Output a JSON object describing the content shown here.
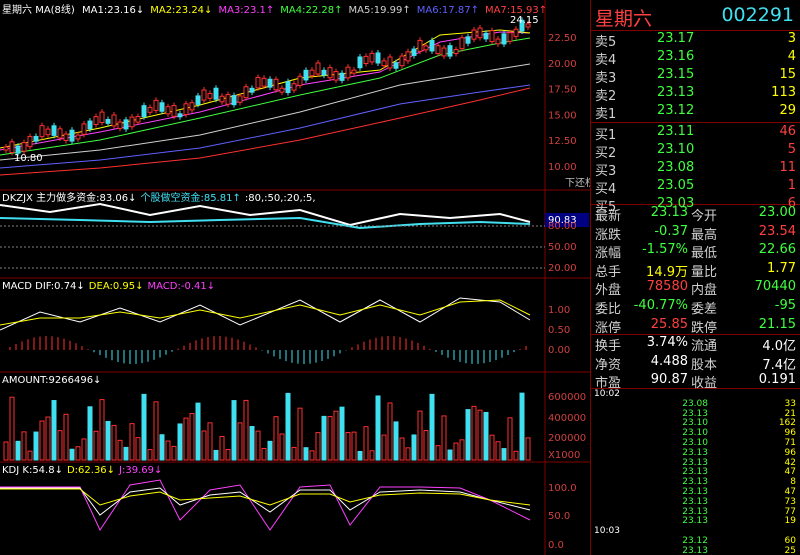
{
  "main_chart": {
    "title": "星期六",
    "indicator": "MA(8线)",
    "legend": [
      {
        "label": "MA1:23.16↓",
        "color": "#ffffff"
      },
      {
        "label": "MA2:23.24↓",
        "color": "#ffff00"
      },
      {
        "label": "MA3:23.1↑",
        "color": "#ff40ff"
      },
      {
        "label": "MA4:22.28↑",
        "color": "#40ff40"
      },
      {
        "label": "MA5:19.99↑",
        "color": "#d0d0d0"
      },
      {
        "label": "MA6:17.87↑",
        "color": "#6060ff"
      },
      {
        "label": "MA7:15.93↑",
        "color": "#ff4040"
      }
    ],
    "axis": [
      "22.50",
      "20.00",
      "17.50",
      "15.00",
      "12.50",
      "10.00"
    ],
    "high": "24.15",
    "low": "10.80",
    "adjust": "下还权"
  },
  "panels": [
    {
      "legend": [
        {
          "label": "DKZJX 主力做多资金:83.06↓",
          "color": "#ffffff"
        },
        {
          "label": "个股做空资金:85.81↑",
          "color": "#40e0f0"
        },
        {
          "label": ":80,:50,:20,:5,",
          "color": "#ffffff"
        }
      ],
      "axis": [
        "90.83",
        "80.00",
        "50.00",
        "20.00"
      ]
    },
    {
      "legend": [
        {
          "label": "MACD DIF:0.74↓",
          "color": "#ffffff"
        },
        {
          "label": "DEA:0.95↓",
          "color": "#ffff00"
        },
        {
          "label": "MACD:-0.41↓",
          "color": "#ff40ff"
        }
      ],
      "axis": [
        "1.00",
        "0.50",
        "0.00"
      ]
    },
    {
      "legend": [
        {
          "label": "AMOUNT:9266496↓",
          "color": "#ffffff"
        }
      ],
      "axis": [
        "600000",
        "400000",
        "200000",
        "X1000"
      ]
    },
    {
      "legend": [
        {
          "label": "KDJ K:54.8↓",
          "color": "#ffffff"
        },
        {
          "label": "D:62.36↓",
          "color": "#ffff00"
        },
        {
          "label": "J:39.69↓",
          "color": "#ff40ff"
        }
      ],
      "axis": [
        "100.0",
        "50.0",
        "0.0"
      ]
    }
  ],
  "header": {
    "name": "星期六",
    "code": "002291"
  },
  "order_book": [
    {
      "label": "卖5",
      "price": "23.17",
      "volume": "3"
    },
    {
      "label": "卖4",
      "price": "23.16",
      "volume": "4"
    },
    {
      "label": "卖3",
      "price": "23.15",
      "volume": "15"
    },
    {
      "label": "卖2",
      "price": "23.13",
      "volume": "113"
    },
    {
      "label": "卖1",
      "price": "23.12",
      "volume": "29"
    },
    {
      "label": "买1",
      "price": "23.11",
      "volume": "46"
    },
    {
      "label": "买2",
      "price": "23.10",
      "volume": "5"
    },
    {
      "label": "买3",
      "price": "23.08",
      "volume": "11"
    },
    {
      "label": "买4",
      "price": "23.05",
      "volume": "1"
    },
    {
      "label": "买5",
      "price": "23.03",
      "volume": "6"
    }
  ],
  "quote": [
    [
      "最新",
      "23.13",
      "今开",
      "23.00"
    ],
    [
      "涨跌",
      "-0.37",
      "最高",
      "23.54"
    ],
    [
      "涨幅",
      "-1.57%",
      "最低",
      "22.66"
    ],
    [
      "总手",
      "14.9万",
      "量比",
      "1.77"
    ],
    [
      "外盘",
      "78580",
      "内盘",
      "70440"
    ],
    [
      "委比",
      "-40.77%",
      "委差",
      "-95"
    ],
    [
      "涨停",
      "25.85",
      "跌停",
      "21.15"
    ]
  ],
  "finance": [
    [
      "换手",
      "3.74%",
      "流通",
      "4.0亿"
    ],
    [
      "净资",
      "4.488",
      "股本",
      "7.4亿"
    ],
    [
      "市盈",
      "90.87",
      "收益",
      "0.191"
    ]
  ],
  "ticks": [
    {
      "time": "10:02"
    },
    {
      "price": "23.08",
      "volume": "33"
    },
    {
      "price": "23.13",
      "volume": "21"
    },
    {
      "price": "23.10",
      "volume": "162"
    },
    {
      "price": "23.10",
      "volume": "96"
    },
    {
      "price": "23.10",
      "volume": "71"
    },
    {
      "price": "23.13",
      "volume": "96"
    },
    {
      "price": "23.13",
      "volume": "42"
    },
    {
      "price": "23.13",
      "volume": "47"
    },
    {
      "price": "23.13",
      "volume": "8"
    },
    {
      "price": "23.13",
      "volume": "47"
    },
    {
      "price": "23.13",
      "volume": "73"
    },
    {
      "price": "23.13",
      "volume": "77"
    },
    {
      "price": "23.13",
      "volume": "19"
    },
    {
      "time": "10:03"
    },
    {
      "price": "23.12",
      "volume": "60"
    },
    {
      "price": "23.13",
      "volume": "25"
    }
  ]
}
